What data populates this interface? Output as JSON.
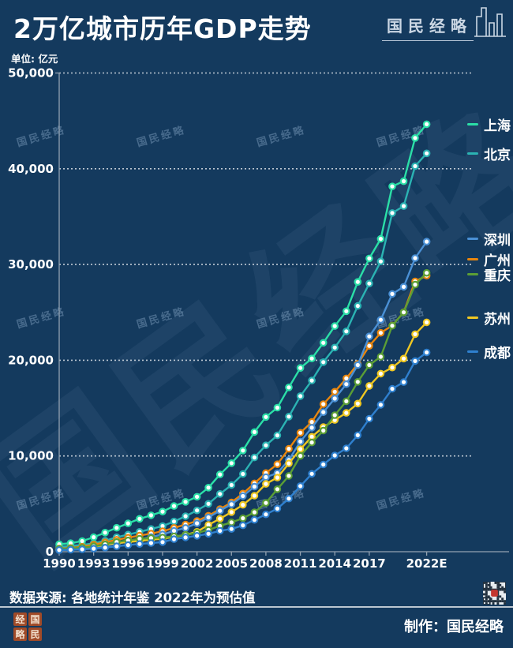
{
  "header": {
    "title": "2万亿城市历年GDP走势",
    "unit_label": "单位: 亿元",
    "logo_text": "国民经略"
  },
  "watermark": {
    "small_text": "国民经略",
    "big_text": "国民经略"
  },
  "chart_data": {
    "type": "line",
    "title": "2万亿城市历年GDP走势",
    "unit": "亿元",
    "grid": "horizontal-dotted",
    "legend_position": "right",
    "ylim": [
      0,
      50000
    ],
    "y_ticks": [
      0,
      10000,
      20000,
      30000,
      40000,
      50000
    ],
    "y_tick_labels": [
      "0",
      "10,000",
      "20,000",
      "30,000",
      "40,000",
      "50,000"
    ],
    "x_tick_years": [
      1990,
      1993,
      1996,
      1999,
      2002,
      2005,
      2008,
      2011,
      2014,
      2017,
      2022
    ],
    "x_tick_labels": [
      "1990",
      "1993",
      "1996",
      "1999",
      "2002",
      "2005",
      "2008",
      "2011",
      "2014",
      "2017",
      "2022E"
    ],
    "x": [
      1990,
      1991,
      1992,
      1993,
      1994,
      1995,
      1996,
      1997,
      1998,
      1999,
      2000,
      2001,
      2002,
      2003,
      2004,
      2005,
      2006,
      2007,
      2008,
      2009,
      2010,
      2011,
      2012,
      2013,
      2014,
      2015,
      2016,
      2017,
      2018,
      2019,
      2020,
      2021,
      2022
    ],
    "series": [
      {
        "key": "shanghai",
        "name": "上海",
        "color": "#2BDFA7",
        "values": [
          782,
          894,
          1114,
          1519,
          1991,
          2499,
          2958,
          3439,
          3801,
          4188,
          4771,
          5210,
          5741,
          6694,
          8073,
          9248,
          10572,
          12494,
          14070,
          15046,
          17166,
          19196,
          20182,
          21818,
          23568,
          25123,
          28179,
          30633,
          32680,
          38155,
          38701,
          43215,
          44652
        ]
      },
      {
        "key": "beijing",
        "name": "北京",
        "color": "#2BB3B3",
        "values": [
          501,
          599,
          709,
          886,
          1145,
          1508,
          1789,
          2077,
          2377,
          2679,
          3161,
          3708,
          4315,
          5007,
          6033,
          6970,
          8118,
          9847,
          11115,
          12153,
          14114,
          16252,
          17879,
          19801,
          21331,
          23015,
          25669,
          28015,
          30320,
          35371,
          36103,
          40270,
          41611
        ]
      },
      {
        "key": "shenzhen",
        "name": "深圳",
        "color": "#4A90D5",
        "values": [
          172,
          237,
          317,
          453,
          635,
          843,
          1050,
          1297,
          1535,
          1804,
          2187,
          2482,
          2970,
          3585,
          4282,
          4951,
          5814,
          6802,
          7787,
          8201,
          9582,
          11506,
          12950,
          14572,
          16002,
          17503,
          19493,
          22490,
          24222,
          26927,
          27670,
          30665,
          32388
        ]
      },
      {
        "key": "guangzhou",
        "name": "广州",
        "color": "#E8860E",
        "values": [
          320,
          386,
          518,
          746,
          985,
          1243,
          1468,
          1678,
          1893,
          2139,
          2493,
          2842,
          3204,
          3759,
          4451,
          5154,
          6074,
          7141,
          8216,
          9138,
          10748,
          12423,
          13551,
          15420,
          16707,
          18100,
          19611,
          21503,
          22859,
          23629,
          25019,
          28232,
          28839
        ]
      },
      {
        "key": "chongqing",
        "name": "重庆",
        "color": "#5B9E35",
        "values": [
          298,
          342,
          423,
          565,
          767,
          1010,
          1179,
          1360,
          1429,
          1480,
          1604,
          1750,
          1972,
          2273,
          2693,
          3070,
          3492,
          4123,
          5097,
          6530,
          7926,
          10011,
          11410,
          12657,
          14263,
          15717,
          17741,
          19500,
          20363,
          23606,
          25003,
          27894,
          29129
        ]
      },
      {
        "key": "suzhou",
        "name": "苏州",
        "color": "#EFC722",
        "values": [
          202,
          235,
          359,
          526,
          721,
          903,
          1002,
          1132,
          1250,
          1358,
          1541,
          1760,
          2080,
          2802,
          3450,
          4138,
          4900,
          5850,
          7078,
          7740,
          9229,
          10717,
          12012,
          13016,
          13761,
          14504,
          15475,
          17319,
          18597,
          19236,
          20171,
          22718,
          23958
        ]
      },
      {
        "key": "chengdu",
        "name": "成都",
        "color": "#2F80CF",
        "values": [
          177,
          205,
          251,
          325,
          427,
          565,
          690,
          810,
          905,
          1003,
          1313,
          1492,
          1667,
          1871,
          2186,
          2371,
          2750,
          3324,
          3901,
          4503,
          5551,
          6854,
          8139,
          9109,
          10057,
          10801,
          12170,
          13889,
          15343,
          17013,
          17717,
          19917,
          20818
        ]
      }
    ]
  },
  "footer": {
    "source_note": "数据来源: 各地统计年鉴  2022年为预估值",
    "credit": "制作：国民经略",
    "seal_chars": [
      "经",
      "国",
      "略",
      "民"
    ]
  }
}
